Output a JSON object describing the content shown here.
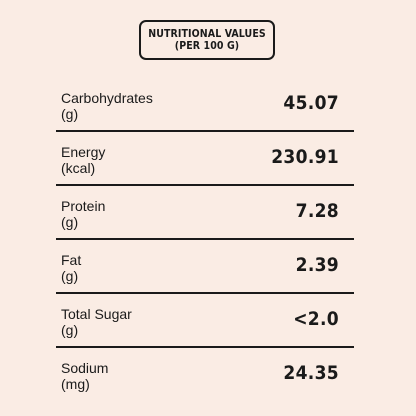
{
  "header": {
    "title_line1": "NUTRITIONAL VALUES",
    "title_line2": "(PER 100 G)"
  },
  "rows": [
    {
      "name": "Carbohydrates",
      "unit": "(g)",
      "value": "45.07"
    },
    {
      "name": "Energy",
      "unit": "(kcal)",
      "value": "230.91"
    },
    {
      "name": "Protein",
      "unit": "(g)",
      "value": "7.28"
    },
    {
      "name": "Fat",
      "unit": "(g)",
      "value": "2.39"
    },
    {
      "name": "Total Sugar",
      "unit": "(g)",
      "value": "<2.0"
    },
    {
      "name": "Sodium",
      "unit": "(mg)",
      "value": "24.35"
    }
  ]
}
